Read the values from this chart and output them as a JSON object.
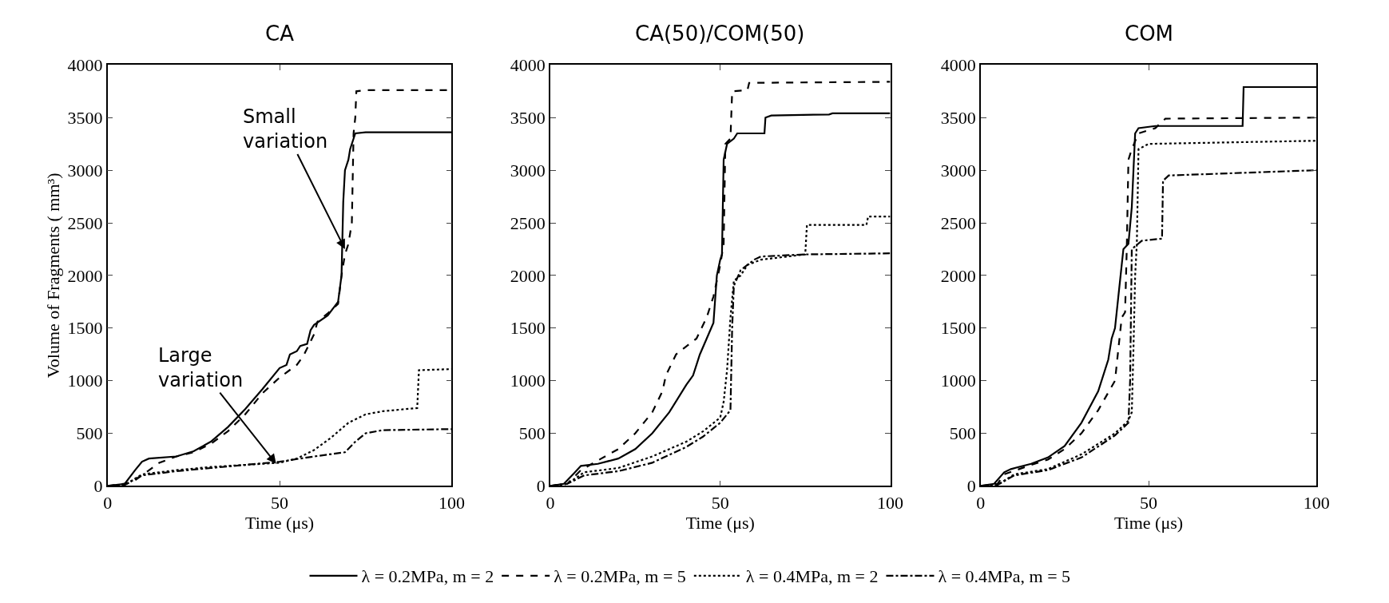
{
  "chart_data": [
    {
      "type": "line",
      "title": "CA",
      "xlabel": "Time (μs)",
      "ylabel": "Volume of Fragments ( mm³)",
      "xlim": [
        0,
        100
      ],
      "xticks": [
        0,
        50,
        100
      ],
      "ylim": [
        0,
        4000
      ],
      "yticks": [
        0,
        500,
        1000,
        1500,
        2000,
        2500,
        3000,
        3500,
        4000
      ],
      "legend": "bottom",
      "marker": "none",
      "annotations": [
        {
          "text": "Small variation",
          "x": 69,
          "y": 2250
        },
        {
          "text": "Large variation",
          "x": 49,
          "y": 210
        }
      ],
      "series": [
        {
          "name": "λ = 0.2MPa, m = 2",
          "color": "#000000",
          "line_style": "solid",
          "x": [
            0,
            5,
            8,
            10,
            12,
            20,
            25,
            30,
            35,
            40,
            45,
            50,
            52,
            53,
            55,
            56,
            58,
            59,
            60,
            64,
            67,
            68,
            68.5,
            69,
            70,
            70.5,
            72,
            75,
            100
          ],
          "values": [
            0,
            20,
            150,
            230,
            260,
            280,
            330,
            420,
            560,
            730,
            920,
            1120,
            1150,
            1250,
            1280,
            1330,
            1350,
            1480,
            1530,
            1620,
            1750,
            2000,
            2700,
            3000,
            3100,
            3200,
            3350,
            3360,
            3360
          ]
        },
        {
          "name": "λ = 0.2MPa, m = 5",
          "color": "#000000",
          "line_style": "dashed",
          "x": [
            0,
            7,
            10,
            15,
            20,
            25,
            30,
            35,
            40,
            45,
            50,
            55,
            57,
            60,
            61,
            64,
            67,
            68,
            69,
            70,
            71,
            71.5,
            72,
            72.3,
            75,
            100
          ],
          "values": [
            0,
            30,
            100,
            220,
            280,
            320,
            400,
            520,
            680,
            880,
            1030,
            1150,
            1240,
            1440,
            1560,
            1640,
            1730,
            2000,
            2200,
            2300,
            2500,
            3350,
            3500,
            3750,
            3760,
            3760
          ]
        },
        {
          "name": "λ = 0.4MPa, m = 2",
          "color": "#000000",
          "line_style": "dotted",
          "x": [
            0,
            5,
            10,
            20,
            30,
            40,
            50,
            55,
            60,
            65,
            70,
            75,
            80,
            90,
            90.5,
            100
          ],
          "values": [
            0,
            10,
            110,
            150,
            180,
            200,
            220,
            260,
            340,
            460,
            600,
            680,
            710,
            740,
            1100,
            1110
          ]
        },
        {
          "name": "λ = 0.4MPa, m = 5",
          "color": "#000000",
          "line_style": "dashdot",
          "x": [
            0,
            5,
            10,
            20,
            30,
            40,
            50,
            60,
            69,
            72,
            75,
            80,
            100
          ],
          "values": [
            0,
            10,
            100,
            140,
            170,
            200,
            230,
            280,
            320,
            420,
            500,
            530,
            540
          ]
        }
      ]
    },
    {
      "type": "line",
      "title": "CA(50)/COM(50)",
      "xlabel": "Time (μs)",
      "xlim": [
        0,
        100
      ],
      "xticks": [
        0,
        50,
        100
      ],
      "ylim": [
        0,
        4000
      ],
      "yticks": [
        0,
        500,
        1000,
        1500,
        2000,
        2500,
        3000,
        3500,
        4000
      ],
      "marker": "none",
      "series": [
        {
          "color": "#000000",
          "line_style": "solid",
          "x": [
            0,
            4,
            7,
            9,
            14,
            20,
            25,
            30,
            35,
            40,
            42,
            44,
            46,
            48,
            49,
            50,
            50.5,
            51,
            52,
            54,
            55,
            63,
            63.3,
            65,
            82,
            83,
            100
          ],
          "values": [
            0,
            20,
            120,
            190,
            210,
            260,
            350,
            500,
            700,
            960,
            1050,
            1250,
            1400,
            1550,
            2000,
            2150,
            2200,
            3100,
            3250,
            3300,
            3350,
            3350,
            3500,
            3520,
            3530,
            3540,
            3540
          ]
        },
        {
          "color": "#000000",
          "line_style": "dashed",
          "x": [
            0,
            5,
            9,
            15,
            20,
            25,
            30,
            33,
            34,
            37,
            43,
            46,
            48,
            50,
            51,
            51.5,
            53,
            53.5,
            58,
            58.5,
            100
          ],
          "values": [
            0,
            20,
            150,
            260,
            350,
            500,
            700,
            900,
            1050,
            1250,
            1400,
            1600,
            1800,
            2100,
            2300,
            3250,
            3300,
            3750,
            3760,
            3830,
            3840
          ]
        },
        {
          "color": "#000000",
          "line_style": "dotted",
          "x": [
            0,
            5,
            10,
            20,
            30,
            40,
            45,
            50,
            51,
            52,
            53,
            54,
            56,
            58,
            62,
            75,
            75.5,
            93,
            93.5,
            100
          ],
          "values": [
            0,
            20,
            130,
            170,
            280,
            420,
            520,
            650,
            800,
            1100,
            1600,
            1950,
            2000,
            2100,
            2150,
            2200,
            2480,
            2480,
            2560,
            2560
          ]
        },
        {
          "color": "#000000",
          "line_style": "dashdot",
          "x": [
            0,
            5,
            10,
            20,
            30,
            40,
            45,
            50,
            53,
            53.5,
            54,
            56,
            60,
            62,
            75,
            100
          ],
          "values": [
            0,
            20,
            100,
            140,
            220,
            370,
            470,
            600,
            720,
            1500,
            1900,
            2050,
            2150,
            2180,
            2200,
            2210
          ]
        }
      ]
    },
    {
      "type": "line",
      "title": "COM",
      "xlabel": "Time (μs)",
      "xlim": [
        0,
        100
      ],
      "xticks": [
        0,
        50,
        100
      ],
      "ylim": [
        0,
        4000
      ],
      "yticks": [
        0,
        500,
        1000,
        1500,
        2000,
        2500,
        3000,
        3500,
        4000
      ],
      "marker": "none",
      "series": [
        {
          "color": "#000000",
          "line_style": "solid",
          "x": [
            0,
            4,
            7,
            9,
            15,
            20,
            25,
            30,
            35,
            38,
            39,
            40,
            41,
            42,
            42.5,
            44,
            45,
            45.5,
            46,
            47,
            52,
            78,
            78.3,
            100
          ],
          "values": [
            0,
            20,
            130,
            160,
            210,
            270,
            380,
            600,
            900,
            1200,
            1400,
            1500,
            1800,
            2100,
            2250,
            2300,
            2650,
            3000,
            3350,
            3400,
            3420,
            3420,
            3790,
            3790
          ]
        },
        {
          "color": "#000000",
          "line_style": "dashed",
          "x": [
            0,
            5,
            7,
            15,
            20,
            25,
            30,
            35,
            40,
            41,
            42,
            43,
            43.5,
            44,
            45,
            47,
            52,
            55,
            100
          ],
          "values": [
            0,
            20,
            110,
            200,
            250,
            350,
            500,
            720,
            1000,
            1300,
            1600,
            1650,
            2250,
            3100,
            3200,
            3350,
            3400,
            3490,
            3500
          ]
        },
        {
          "color": "#000000",
          "line_style": "dotted",
          "x": [
            0,
            5,
            10,
            20,
            30,
            40,
            44,
            45,
            45.5,
            46,
            46.5,
            47,
            50,
            100
          ],
          "values": [
            0,
            10,
            110,
            160,
            300,
            500,
            620,
            700,
            1300,
            2000,
            2300,
            3200,
            3250,
            3280
          ]
        },
        {
          "color": "#000000",
          "line_style": "dashdot",
          "x": [
            0,
            5,
            10,
            20,
            30,
            40,
            44,
            44.5,
            45,
            48,
            54,
            54.3,
            56,
            100
          ],
          "values": [
            0,
            10,
            100,
            150,
            270,
            480,
            600,
            1000,
            2250,
            2330,
            2350,
            2900,
            2950,
            3000
          ]
        }
      ]
    }
  ]
}
